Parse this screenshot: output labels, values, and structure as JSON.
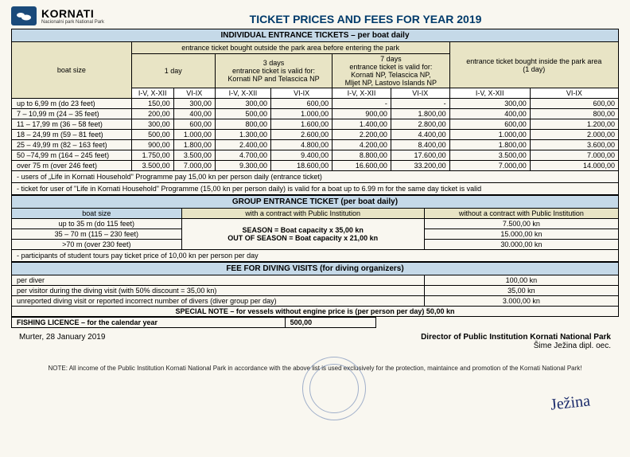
{
  "logo": {
    "name": "KORNATI",
    "sub": "Nacionalni park\nNational Park"
  },
  "title": "TICKET PRICES AND FEES FOR YEAR 2019",
  "section1": {
    "header": "INDIVIDUAL ENTRANCE TICKETS – per boat daily",
    "outside_header": "entrance ticket bought outside the park area before entering the park",
    "inside_header": "entrance ticket bought inside the park area\n(1 day)",
    "boat_size_label": "boat size",
    "day1": "1 day",
    "day3": "3 days\nentrance ticket is valid for:\nKornati NP and Telascica NP",
    "day7": "7 days\nentrance ticket is valid for:\nKornati NP, Telascica NP,\nMljet NP, Lastovo Islands NP",
    "season_cols": [
      "I-V, X-XII",
      "VI-IX",
      "I-V, X-XII",
      "VI-IX",
      "I-V, X-XII",
      "VI-IX",
      "I-V, X-XII",
      "VI-IX"
    ],
    "rows": [
      {
        "label": "up to 6,99 m (do 23 feet)",
        "v": [
          "150,00",
          "300,00",
          "300,00",
          "600,00",
          "-",
          "-",
          "300,00",
          "600,00"
        ]
      },
      {
        "label": "7 – 10,99 m (24 – 35 feet)",
        "v": [
          "200,00",
          "400,00",
          "500,00",
          "1.000,00",
          "900,00",
          "1.800,00",
          "400,00",
          "800,00"
        ]
      },
      {
        "label": "11 – 17,99 m (36 – 58 feet)",
        "v": [
          "300,00",
          "600,00",
          "800,00",
          "1.600,00",
          "1.400,00",
          "2.800,00",
          "600,00",
          "1.200,00"
        ]
      },
      {
        "label": "18 – 24,99 m (59 – 81 feet)",
        "v": [
          "500,00",
          "1.000,00",
          "1.300,00",
          "2.600,00",
          "2.200,00",
          "4.400,00",
          "1.000,00",
          "2.000,00"
        ]
      },
      {
        "label": "25 – 49,99 m (82 – 163 feet)",
        "v": [
          "900,00",
          "1.800,00",
          "2.400,00",
          "4.800,00",
          "4.200,00",
          "8.400,00",
          "1.800,00",
          "3.600,00"
        ]
      },
      {
        "label": "50 –74,99 m (164 – 245 feet)",
        "v": [
          "1.750,00",
          "3.500,00",
          "4.700,00",
          "9.400,00",
          "8.800,00",
          "17.600,00",
          "3.500,00",
          "7.000,00"
        ]
      },
      {
        "label": "over 75 m (over 246 feet)",
        "v": [
          "3.500,00",
          "7.000,00",
          "9.300,00",
          "18.600,00",
          "16.600,00",
          "33.200,00",
          "7.000,00",
          "14.000,00"
        ]
      }
    ],
    "note1": "- users of „Life in Kornati Household\" Programme pay 15,00 kn per person daily (entrance ticket)",
    "note2": "- ticket for user of  \"Life in Kornati Household\" Programme (15,00 kn per person daily) is valid for a boat up to 6.99 m for the same day ticket is valid"
  },
  "section2": {
    "header": "GROUP ENTRANCE TICKET (per boat daily)",
    "cols": [
      "boat size",
      "with a contract with Public Institution",
      "without a contract with Public Institution"
    ],
    "season_line": "SEASON = Boat capacity x 35,00 kn",
    "out_season_line": "OUT OF SEASON = Boat capacity x 21,00 kn",
    "rows": [
      {
        "label": "up to 35 m (do 115 feet)",
        "wo": "7.500,00 kn"
      },
      {
        "label": "35 – 70 m (115 – 230 feet)",
        "wo": "15.000,00 kn"
      },
      {
        "label": ">70 m (over 230 feet)",
        "wo": "30.000,00 kn"
      }
    ],
    "note": "- participants of student tours pay ticket price of 10,00 kn per person per day"
  },
  "section3": {
    "header": "FEE FOR DIVING VISITS (for diving organizers)",
    "rows": [
      {
        "label": "per diver",
        "v": "100,00 kn"
      },
      {
        "label": "per visitor during the diving visit (with 50% discount = 35,00 kn)",
        "v": "35,00 kn"
      },
      {
        "label": "unreported diving visit or reported incorrect number of divers (diver group per day)",
        "v": "3.000,00 kn"
      }
    ],
    "special": "SPECIAL NOTE – for vessels without engine price is (per person per day) 50,00 kn"
  },
  "fishing": {
    "label": "FISHING LICENCE – for the calendar year",
    "v": "500,00"
  },
  "footer": {
    "left": "Murter, 28 January 2019",
    "right1": "Director of Public Institution Kornati National Park",
    "right2": "Šime Ježina dipl. oec."
  },
  "fine_print": "NOTE: All income of the Public Institution Kornati National Park in accordance with the above list is used exclusively for the protection, maintaince and promotion of the Kornati National Park!",
  "colors": {
    "section_bg": "#c5d9e8",
    "sub_bg": "#e8e4c5",
    "title_color": "#003a6a",
    "border": "#000000",
    "page_bg": "#f9f7f0"
  }
}
